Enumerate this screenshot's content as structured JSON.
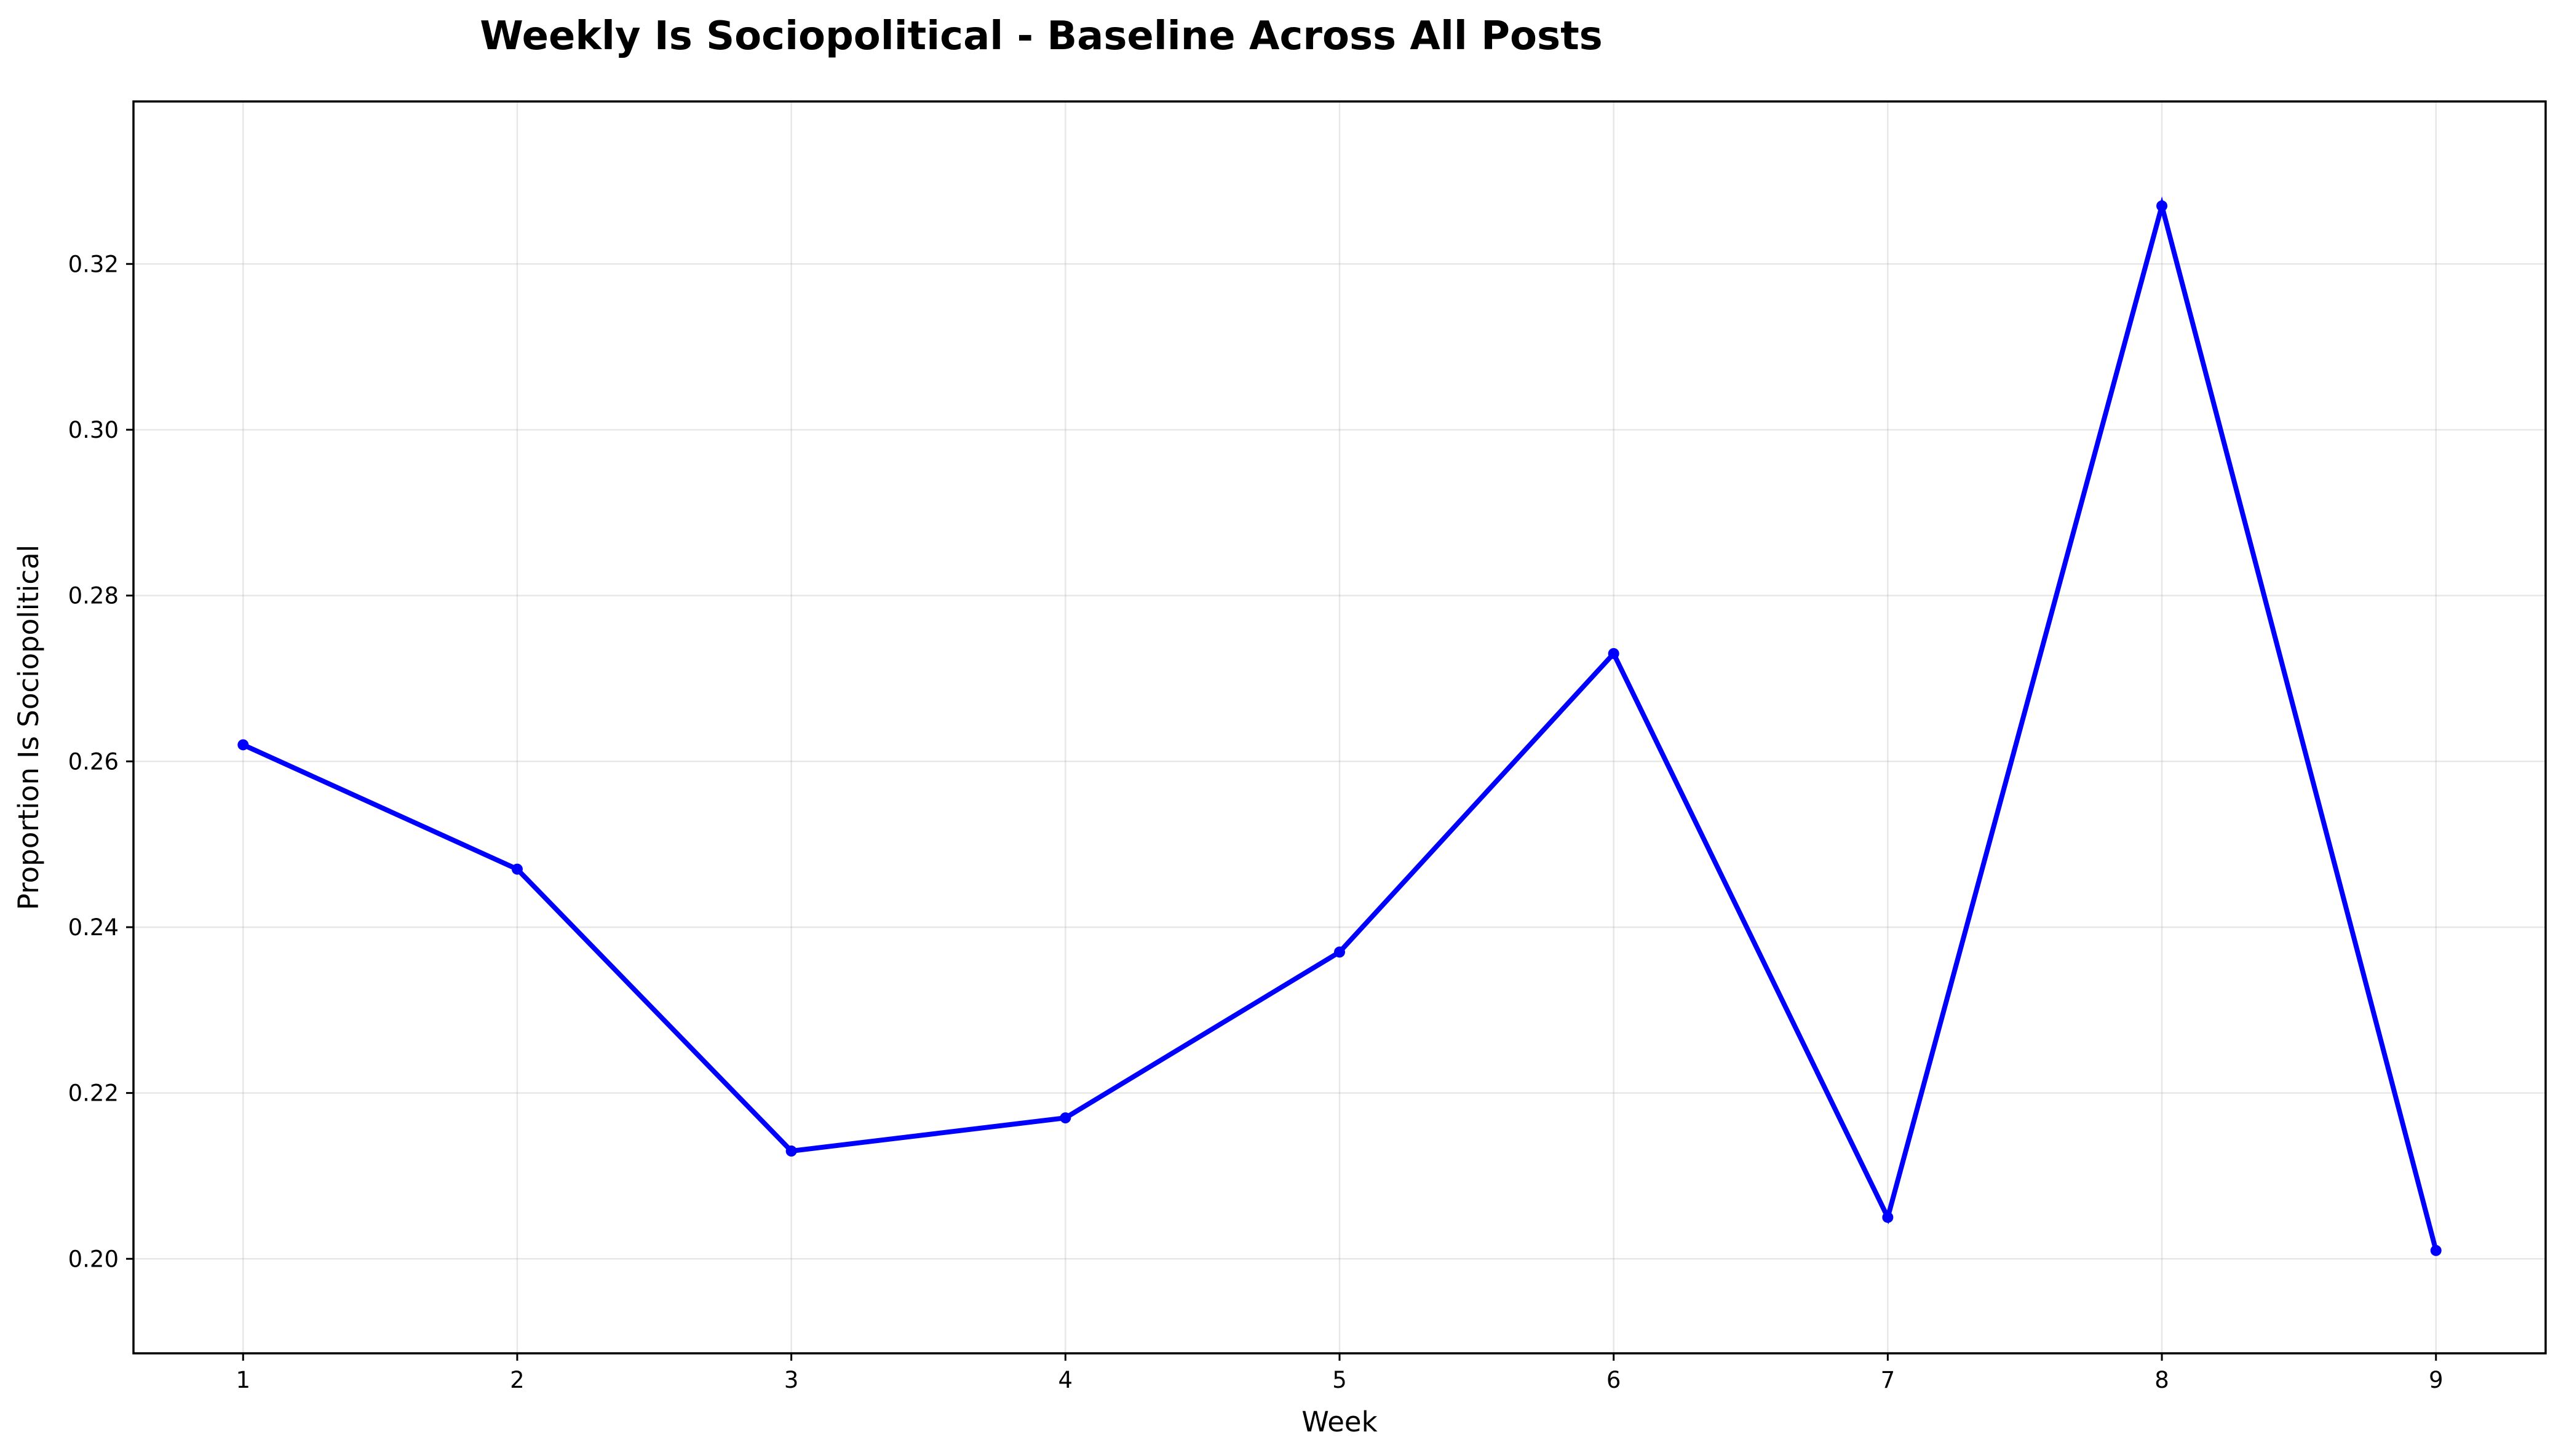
{
  "chart_data": {
    "type": "line",
    "title": "Weekly Is Sociopolitical - Baseline Across All Posts",
    "xlabel": "Week",
    "ylabel": "Proportion Is Sociopolitical",
    "x": [
      1,
      2,
      3,
      4,
      5,
      6,
      7,
      8,
      9
    ],
    "series": [
      {
        "values": [
          0.262,
          0.247,
          0.213,
          0.217,
          0.237,
          0.273,
          0.205,
          0.327,
          0.201
        ],
        "color": "#0000ff",
        "marker": "circle"
      }
    ],
    "xlim": [
      0.6,
      9.4
    ],
    "ylim": [
      0.1886,
      0.3396
    ],
    "xticks": [
      1,
      2,
      3,
      4,
      5,
      6,
      7,
      8,
      9
    ],
    "yticks": [
      0.2,
      0.22,
      0.24,
      0.26,
      0.28,
      0.3,
      0.32
    ],
    "ytick_labels": [
      "0.20",
      "0.22",
      "0.24",
      "0.26",
      "0.28",
      "0.30",
      "0.32"
    ],
    "grid": true,
    "legend": false
  }
}
